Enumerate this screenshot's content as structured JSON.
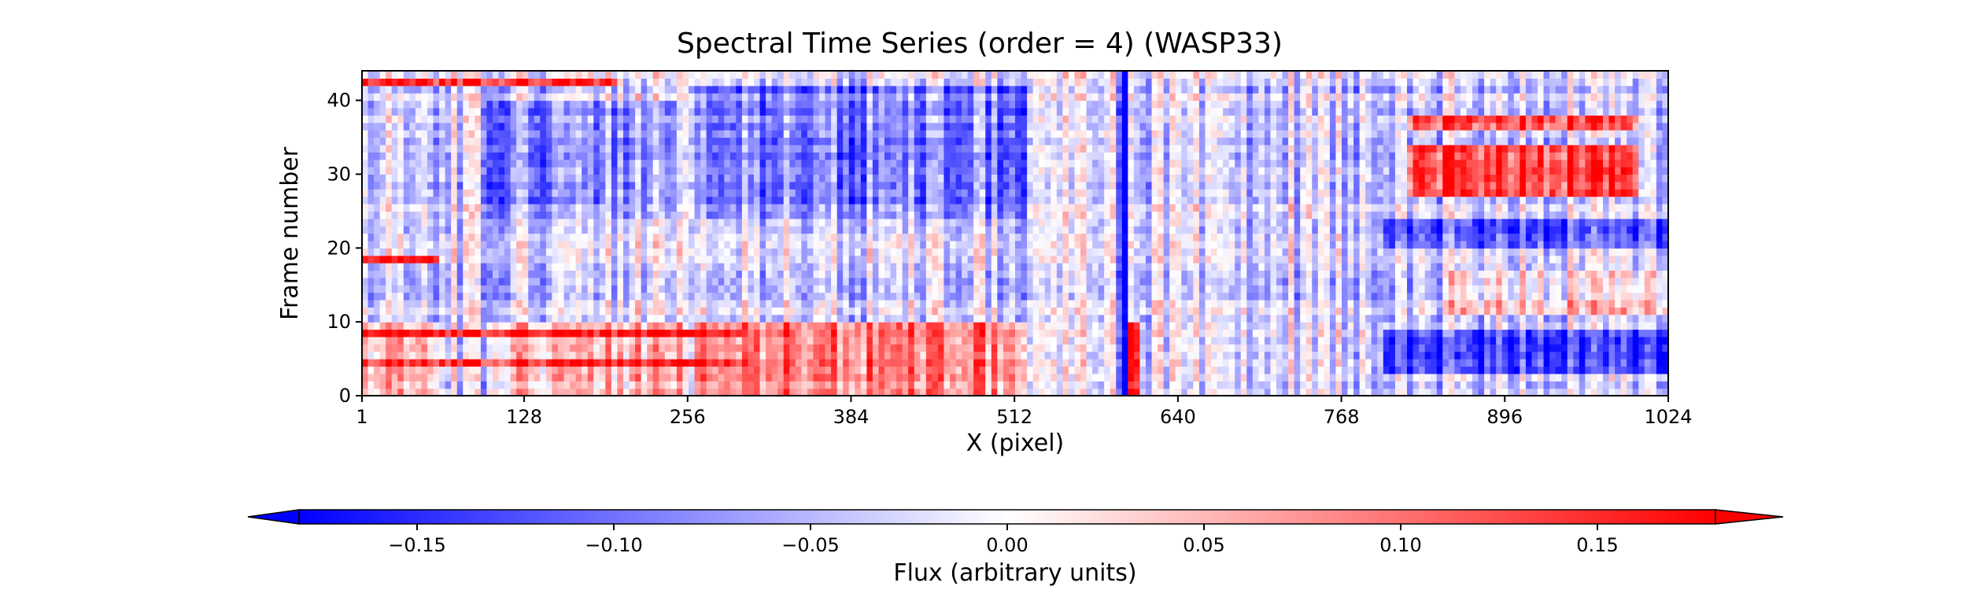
{
  "chart_data": {
    "type": "heatmap",
    "title": "Spectral Time Series (order = 4) (WASP33)",
    "xlabel": "X (pixel)",
    "ylabel": "Frame number",
    "xlim": [
      1,
      1024
    ],
    "ylim": [
      0,
      44
    ],
    "xticks": [
      "1",
      "128",
      "256",
      "384",
      "512",
      "640",
      "768",
      "896",
      "1024"
    ],
    "yticks": [
      "0",
      "10",
      "20",
      "30",
      "40"
    ],
    "colorbar": {
      "label": "Flux (arbitrary units)",
      "range": [
        -0.18,
        0.18
      ],
      "ticks": [
        "−0.15",
        "−0.10",
        "−0.05",
        "0.00",
        "0.05",
        "0.10",
        "0.15"
      ],
      "tick_values": [
        -0.15,
        -0.1,
        -0.05,
        0.0,
        0.05,
        0.1,
        0.15
      ],
      "extend": "both",
      "colormap": "bwr",
      "low_color": "#0000ff",
      "mid_color": "#ffffff",
      "high_color": "#ff0000"
    },
    "frames": 44,
    "columns": 1024,
    "regions": [
      {
        "x": [
          1,
          60
        ],
        "frames": [
          0,
          10
        ],
        "value": 0.05
      },
      {
        "x": [
          100,
          250
        ],
        "frames": [
          0,
          10
        ],
        "value": 0.04
      },
      {
        "x": [
          260,
          520
        ],
        "frames": [
          0,
          10
        ],
        "value": 0.08
      },
      {
        "x": [
          100,
          250
        ],
        "frames": [
          24,
          40
        ],
        "value": -0.08
      },
      {
        "x": [
          260,
          520
        ],
        "frames": [
          24,
          42
        ],
        "value": -0.09
      },
      {
        "x": [
          590,
          600
        ],
        "frames": [
          0,
          44
        ],
        "value": -0.15
      },
      {
        "x": [
          601,
          610
        ],
        "frames": [
          0,
          10
        ],
        "value": 0.15
      },
      {
        "x": [
          800,
          1024
        ],
        "frames": [
          3,
          9
        ],
        "value": -0.14
      },
      {
        "x": [
          800,
          1024
        ],
        "frames": [
          20,
          24
        ],
        "value": -0.12
      },
      {
        "x": [
          820,
          1000
        ],
        "frames": [
          27,
          34
        ],
        "value": 0.14
      },
      {
        "x": [
          820,
          1000
        ],
        "frames": [
          36,
          38
        ],
        "value": 0.12
      },
      {
        "x": [
          850,
          1024
        ],
        "frames": [
          11,
          17
        ],
        "value": 0.03
      }
    ],
    "row_bands": [
      {
        "frame": 4,
        "x": [
          1,
          300
        ],
        "value": 0.14
      },
      {
        "frame": 8,
        "x": [
          1,
          300
        ],
        "value": 0.15
      },
      {
        "frame": 18,
        "x": [
          1,
          60
        ],
        "value": 0.16
      },
      {
        "frame": 42,
        "x": [
          1,
          200
        ],
        "value": 0.15
      }
    ]
  }
}
